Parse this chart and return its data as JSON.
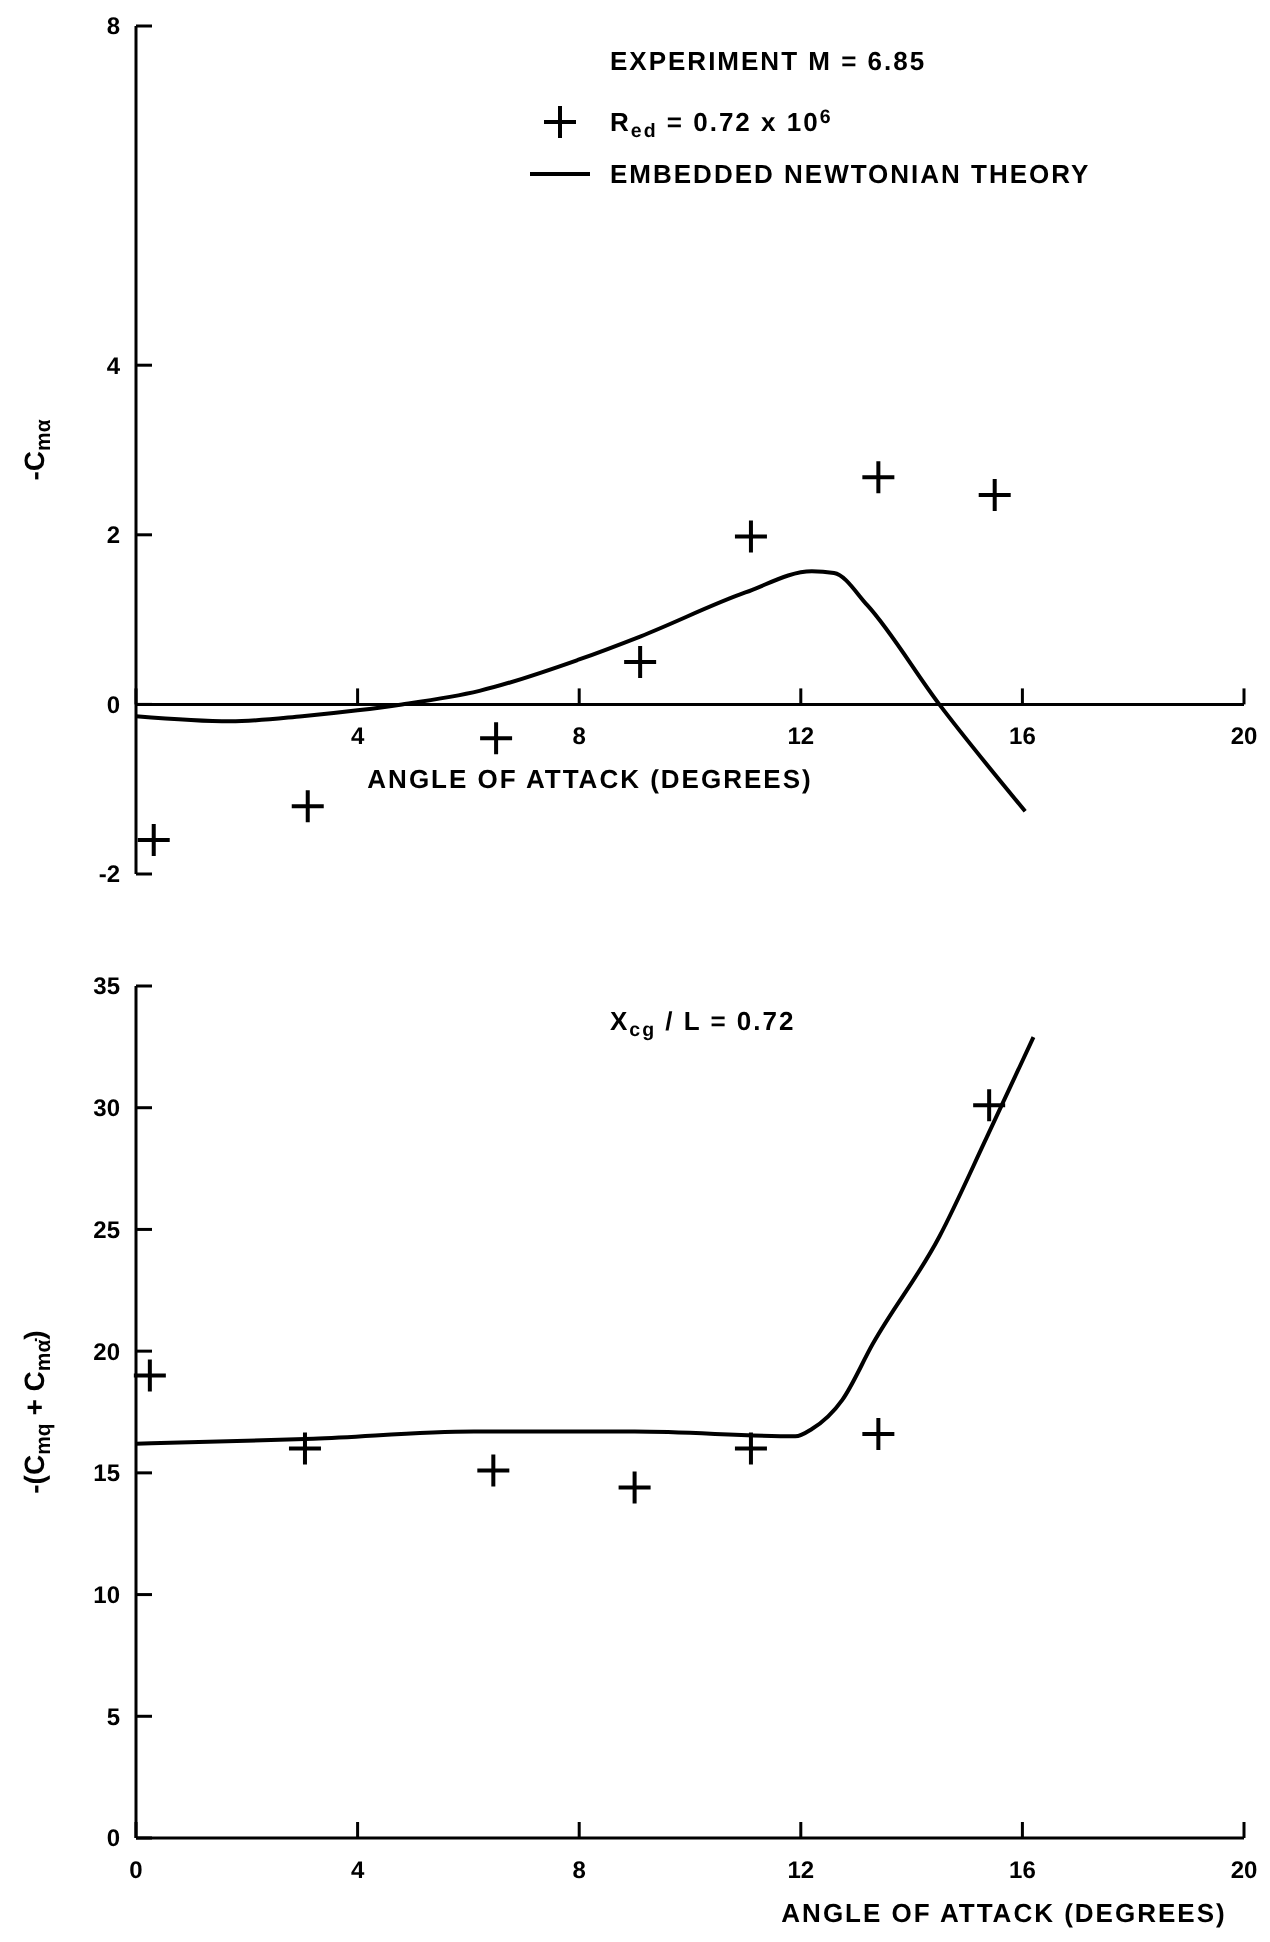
{
  "chart_data": [
    {
      "type": "scatter",
      "ylabel": "-C$_{mα}$",
      "xlabel": "ANGLE OF ATTACK (DEGREES)",
      "legend_title": "EXPERIMENT M = 6.85",
      "legend": "top",
      "xlim": [
        0,
        20
      ],
      "xticks": [
        {
          "value": 0,
          "label": null
        },
        4,
        8,
        12,
        16,
        20
      ],
      "ylim": [
        -2,
        8
      ],
      "yticks": [
        -2,
        0,
        2,
        4,
        8
      ],
      "series": [
        {
          "name": "R$_{ed}$ = 0.72 x 10$^{6}$",
          "marker": "cross",
          "color": "#000000",
          "x": [
            0.32,
            3.1,
            6.5,
            9.1,
            11.1,
            13.4,
            15.5
          ],
          "values": [
            -1.6,
            -1.2,
            -0.4,
            0.5,
            1.98,
            2.68,
            2.47
          ]
        },
        {
          "name": "EMBEDDED NEWTONIAN THEORY",
          "type": "line",
          "marker": "none",
          "line_style": "solid",
          "color": "#000000",
          "x": [
            0,
            1.7,
            3.0,
            4,
            4.8,
            6.2,
            8,
            9.1,
            11,
            12.2,
            12.6,
            13.2,
            14.5,
            16.05
          ],
          "values": [
            -0.14,
            -0.2,
            -0.14,
            -0.07,
            0,
            0.16,
            0.53,
            0.8,
            1.32,
            1.57,
            1.55,
            1.17,
            0,
            -1.26
          ]
        }
      ]
    },
    {
      "type": "scatter",
      "ylabel": "-(C$_{mq}$ + C$_{mα̇}$)",
      "xlabel": "ANGLE OF ATTACK (DEGREES)",
      "annotations": [
        "X$_{cg}$ / L = 0.72"
      ],
      "legend": false,
      "xlim": [
        0,
        20
      ],
      "xticks": [
        0,
        4,
        8,
        12,
        16,
        20
      ],
      "ylim": [
        0,
        35
      ],
      "yticks": [
        0,
        5,
        10,
        15,
        20,
        25,
        30,
        35
      ],
      "series": [
        {
          "marker": "cross",
          "color": "#000000",
          "x": [
            0.25,
            3.05,
            6.45,
            9.0,
            11.1,
            13.4,
            15.4
          ],
          "values": [
            19.0,
            16.0,
            15.1,
            14.4,
            16.0,
            16.6,
            30.1
          ]
        },
        {
          "type": "line",
          "marker": "none",
          "line_style": "solid",
          "color": "#000000",
          "x": [
            0,
            3.2,
            6.1,
            9,
            11.9,
            12.2,
            12.75,
            13.3,
            14.5,
            15.36,
            16.2
          ],
          "values": [
            16.2,
            16.4,
            16.7,
            16.7,
            16.5,
            16.8,
            18.0,
            20.3,
            24.7,
            28.8,
            32.9
          ]
        }
      ]
    }
  ]
}
